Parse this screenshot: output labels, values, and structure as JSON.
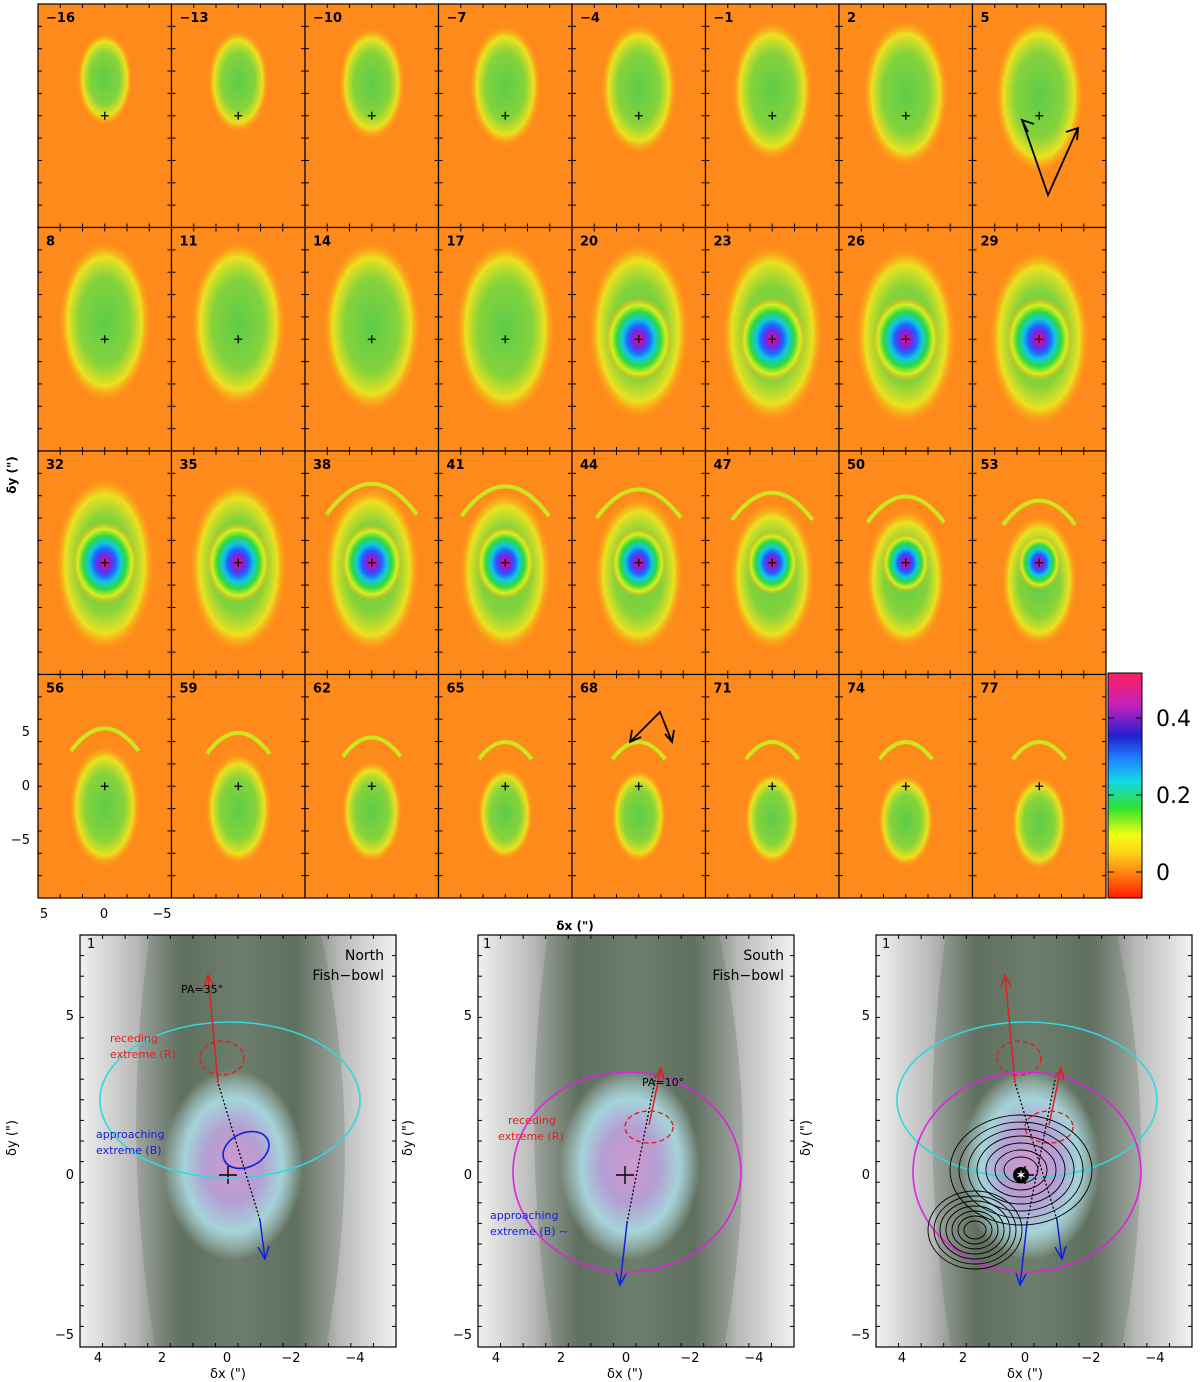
{
  "channel_grid": {
    "velocities": [
      "−16",
      "−13",
      "−10",
      "−7",
      "−4",
      "−1",
      "2",
      "5",
      "8",
      "11",
      "14",
      "17",
      "20",
      "23",
      "26",
      "29",
      "32",
      "35",
      "38",
      "41",
      "44",
      "47",
      "50",
      "53",
      "56",
      "59",
      "62",
      "65",
      "68",
      "71",
      "74",
      "77"
    ],
    "y_axis_label": "δy (\")",
    "x_axis_label": "δx (\")",
    "y_ticks": [
      "5",
      "0",
      "−5"
    ],
    "x_ticks": [
      "5",
      "0",
      "−5"
    ]
  },
  "colorbar": {
    "ticks": [
      "0.4",
      "0.2",
      "0"
    ],
    "colors": [
      "#ff1a00",
      "#ff7a10",
      "#ffd21a",
      "#f0ff10",
      "#30e030",
      "#10d8e8",
      "#2080ff",
      "#2020d0",
      "#c020c0",
      "#ff2060"
    ]
  },
  "panels": [
    {
      "corner_number": "1",
      "title_line1": "North",
      "title_line2": "Fish−bowl",
      "pa_label": "PA=35°",
      "receding_label_1": "receding",
      "receding_label_2": "extreme (R)",
      "approaching_label_1": "approaching",
      "approaching_label_2": "extreme (B)",
      "y_label": "δy (\")",
      "x_label": "δx (\")",
      "x_ticks": [
        "4",
        "2",
        "0",
        "−2",
        "−4"
      ],
      "y_ticks": [
        "5",
        "0",
        "−5"
      ]
    },
    {
      "corner_number": "1",
      "title_line1": "South",
      "title_line2": "Fish−bowl",
      "pa_label": "PA=10°",
      "receding_label_1": "receding",
      "receding_label_2": "extreme (R)",
      "approaching_label_1": "approaching",
      "approaching_label_2": "extreme (B) ~",
      "y_label": "δy (\")",
      "x_label": "δx (\")",
      "x_ticks": [
        "4",
        "2",
        "0",
        "−2",
        "−4"
      ],
      "y_ticks": [
        "5",
        "0",
        "−5"
      ]
    },
    {
      "corner_number": "1",
      "y_label": "δy (\")",
      "x_label": "δx (\")",
      "x_ticks": [
        "4",
        "2",
        "0",
        "−2",
        "−4"
      ],
      "y_ticks": [
        "5",
        "0",
        "−5"
      ]
    }
  ]
}
